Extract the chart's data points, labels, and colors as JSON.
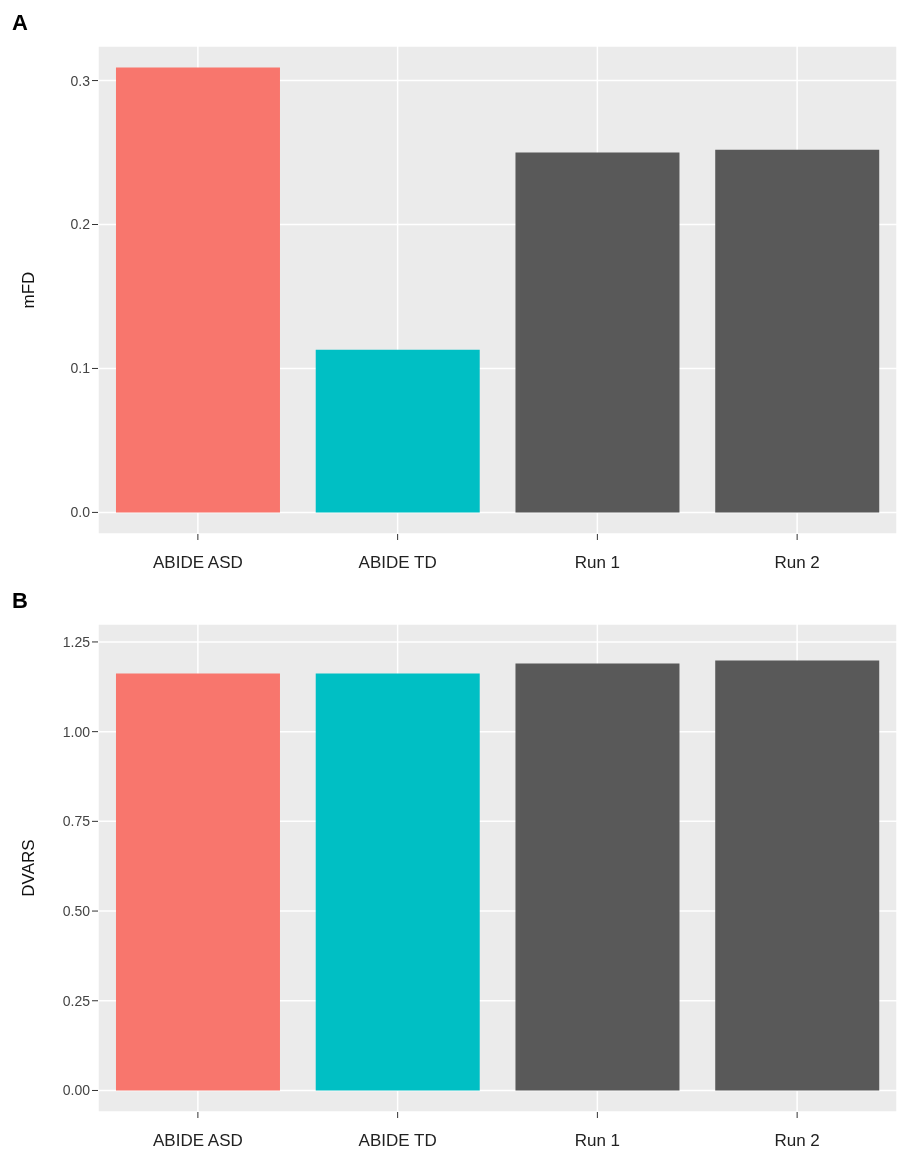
{
  "chart_data": [
    {
      "type": "bar",
      "title": "A",
      "ylabel": "mFD",
      "categories": [
        "ABIDE ASD",
        "ABIDE TD",
        "Run 1",
        "Run 2"
      ],
      "values": [
        0.309,
        0.113,
        0.25,
        0.252
      ],
      "colors": [
        "#f8766d",
        "#00bfc4",
        "#595959",
        "#595959"
      ],
      "ylim": [
        -0.015,
        0.324
      ],
      "yticks": [
        {
          "value": 0,
          "label": "0.0"
        },
        {
          "value": 0.1,
          "label": "0.1"
        },
        {
          "value": 0.2,
          "label": "0.2"
        },
        {
          "value": 0.3,
          "label": "0.3"
        }
      ],
      "grid": true
    },
    {
      "type": "bar",
      "title": "B",
      "ylabel": "DVARS",
      "categories": [
        "ABIDE ASD",
        "ABIDE TD",
        "Run 1",
        "Run 2"
      ],
      "values": [
        1.162,
        1.162,
        1.19,
        1.198
      ],
      "colors": [
        "#f8766d",
        "#00bfc4",
        "#595959",
        "#595959"
      ],
      "ylim": [
        -0.06,
        1.3
      ],
      "yticks": [
        {
          "value": 0,
          "label": "0.00"
        },
        {
          "value": 0.25,
          "label": "0.25"
        },
        {
          "value": 0.5,
          "label": "0.50"
        },
        {
          "value": 0.75,
          "label": "0.75"
        },
        {
          "value": 1,
          "label": "1.00"
        },
        {
          "value": 1.25,
          "label": "1.25"
        }
      ],
      "grid": true
    }
  ]
}
